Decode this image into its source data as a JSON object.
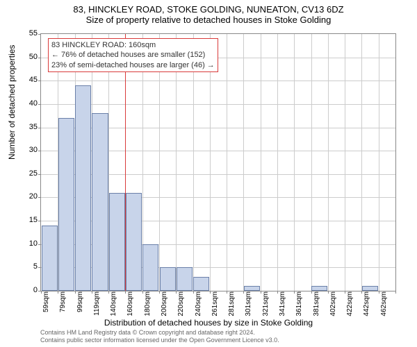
{
  "title_main": "83, HINCKLEY ROAD, STOKE GOLDING, NUNEATON, CV13 6DZ",
  "title_sub": "Size of property relative to detached houses in Stoke Golding",
  "ylabel": "Number of detached properties",
  "xlabel_bottom": "Distribution of detached houses by size in Stoke Golding",
  "chart": {
    "type": "histogram",
    "ylim": [
      0,
      55
    ],
    "ytick_step": 5,
    "yticks": [
      0,
      5,
      10,
      15,
      20,
      25,
      30,
      35,
      40,
      45,
      50,
      55
    ],
    "bar_fill": "#c8d4ea",
    "bar_stroke": "#6a7fa8",
    "grid_color": "#cccccc",
    "background_color": "#ffffff",
    "marker_color": "#d93a3a",
    "marker_x_value": 160,
    "bar_width": 0.95,
    "categories": [
      "59sqm",
      "79sqm",
      "99sqm",
      "119sqm",
      "140sqm",
      "160sqm",
      "180sqm",
      "200sqm",
      "220sqm",
      "240sqm",
      "261sqm",
      "281sqm",
      "301sqm",
      "321sqm",
      "341sqm",
      "361sqm",
      "381sqm",
      "402sqm",
      "422sqm",
      "442sqm",
      "462sqm"
    ],
    "values": [
      14,
      37,
      44,
      38,
      21,
      21,
      10,
      5,
      5,
      3,
      0,
      0,
      1,
      0,
      0,
      0,
      1,
      0,
      0,
      1,
      0
    ],
    "title_fontsize": 13,
    "label_fontsize": 12,
    "tick_fontsize": 11
  },
  "annotation": {
    "lines": [
      "83 HINCKLEY ROAD: 160sqm",
      "← 76% of detached houses are smaller (152)",
      "23% of semi-detached houses are larger (46) →"
    ],
    "border_color": "#d93a3a",
    "text_color": "#333333"
  },
  "footer": {
    "line1": "Contains HM Land Registry data © Crown copyright and database right 2024.",
    "line2": "Contains public sector information licensed under the Open Government Licence v3.0."
  }
}
